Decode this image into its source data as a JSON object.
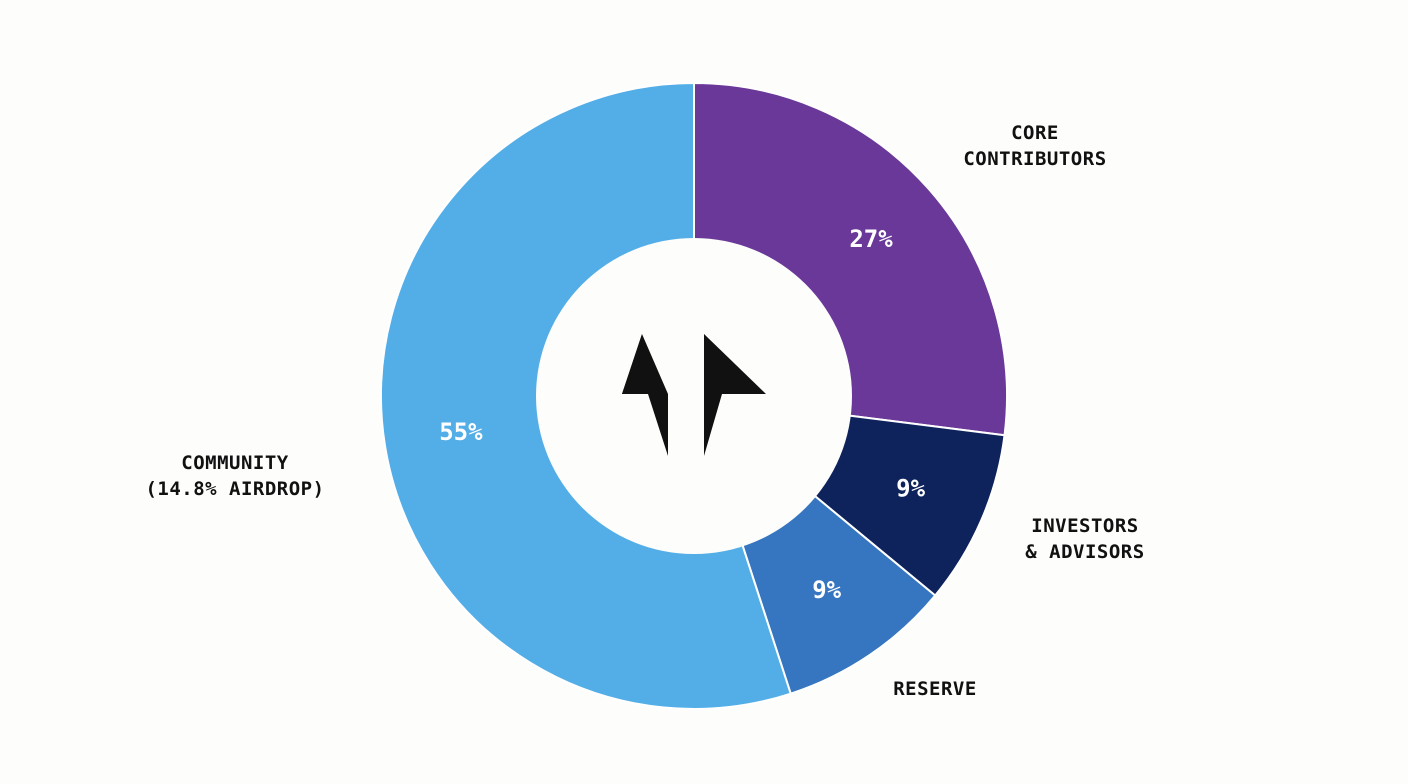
{
  "chart_data": {
    "type": "pie",
    "donut": true,
    "slices": [
      {
        "label_lines": [
          "CORE",
          "CONTRIBUTORS"
        ],
        "value": 27,
        "display": "27%",
        "color": "#6a3899"
      },
      {
        "label_lines": [
          "INVESTORS",
          "& ADVISORS"
        ],
        "value": 9,
        "display": "9%",
        "color": "#0e225c"
      },
      {
        "label_lines": [
          "RESERVE"
        ],
        "value": 9,
        "display": "9%",
        "color": "#3675bf"
      },
      {
        "label_lines": [
          "COMMUNITY",
          "(14.8% AIRDROP)"
        ],
        "value": 55,
        "display": "55%",
        "color": "#53aee7"
      }
    ],
    "center_icon": "double-up-arrow-logo-icon",
    "start_angle": "12 o'clock",
    "direction": "clockwise"
  }
}
